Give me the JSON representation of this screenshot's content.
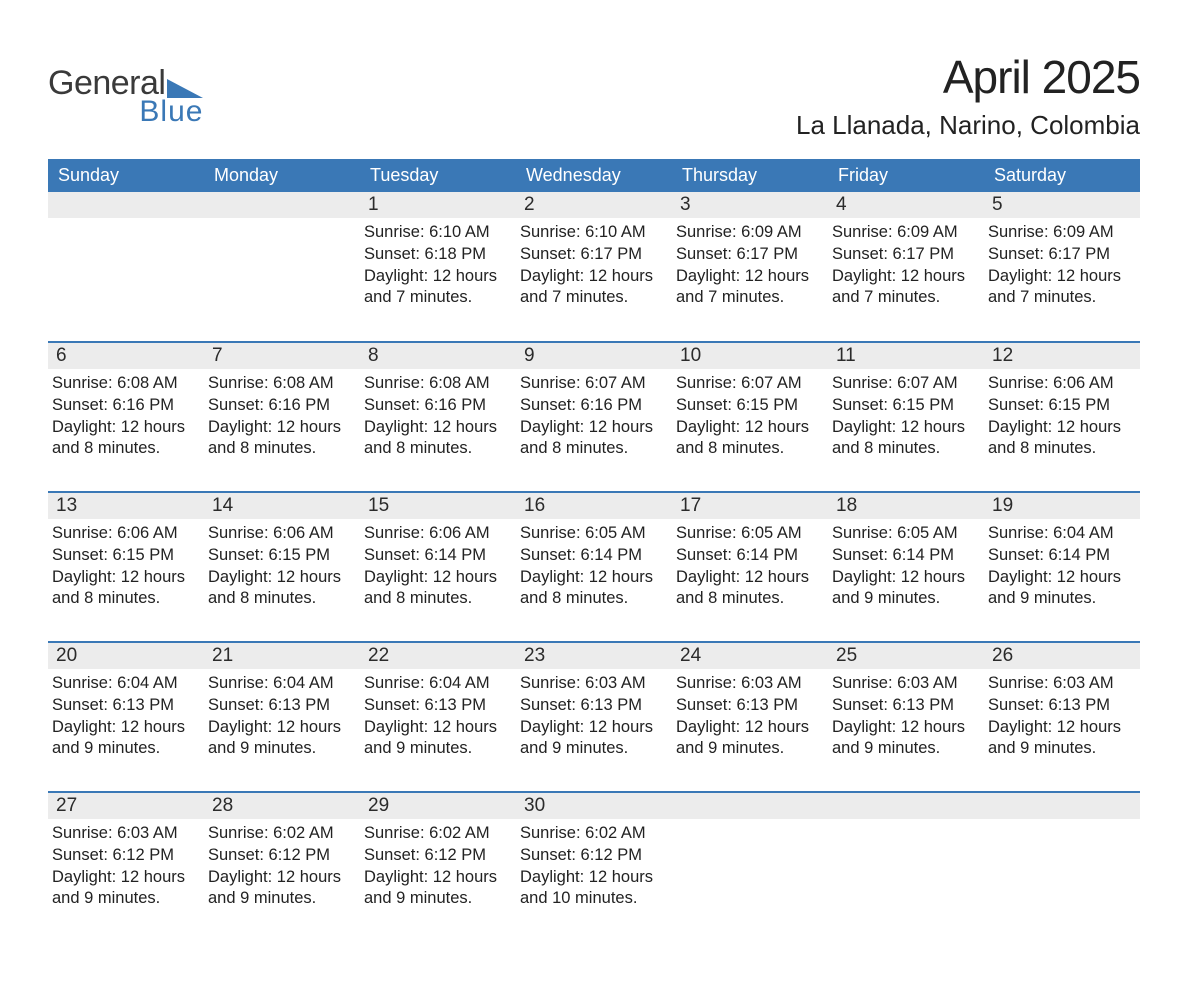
{
  "logo": {
    "text_top": "General",
    "text_bottom": "Blue",
    "color_dark": "#3a3a3a",
    "color_blue": "#3a78b6"
  },
  "title": "April 2025",
  "location": "La Llanada, Narino, Colombia",
  "colors": {
    "header_bg": "#3a78b6",
    "header_text": "#ffffff",
    "daynum_bg": "#ececec",
    "row_divider": "#3a78b6",
    "text": "#222222",
    "page_bg": "#ffffff"
  },
  "weekdays": [
    "Sunday",
    "Monday",
    "Tuesday",
    "Wednesday",
    "Thursday",
    "Friday",
    "Saturday"
  ],
  "weeks": [
    [
      {
        "day": "",
        "sunrise": "",
        "sunset": "",
        "daylight": ""
      },
      {
        "day": "",
        "sunrise": "",
        "sunset": "",
        "daylight": ""
      },
      {
        "day": "1",
        "sunrise": "Sunrise: 6:10 AM",
        "sunset": "Sunset: 6:18 PM",
        "daylight": "Daylight: 12 hours and 7 minutes."
      },
      {
        "day": "2",
        "sunrise": "Sunrise: 6:10 AM",
        "sunset": "Sunset: 6:17 PM",
        "daylight": "Daylight: 12 hours and 7 minutes."
      },
      {
        "day": "3",
        "sunrise": "Sunrise: 6:09 AM",
        "sunset": "Sunset: 6:17 PM",
        "daylight": "Daylight: 12 hours and 7 minutes."
      },
      {
        "day": "4",
        "sunrise": "Sunrise: 6:09 AM",
        "sunset": "Sunset: 6:17 PM",
        "daylight": "Daylight: 12 hours and 7 minutes."
      },
      {
        "day": "5",
        "sunrise": "Sunrise: 6:09 AM",
        "sunset": "Sunset: 6:17 PM",
        "daylight": "Daylight: 12 hours and 7 minutes."
      }
    ],
    [
      {
        "day": "6",
        "sunrise": "Sunrise: 6:08 AM",
        "sunset": "Sunset: 6:16 PM",
        "daylight": "Daylight: 12 hours and 8 minutes."
      },
      {
        "day": "7",
        "sunrise": "Sunrise: 6:08 AM",
        "sunset": "Sunset: 6:16 PM",
        "daylight": "Daylight: 12 hours and 8 minutes."
      },
      {
        "day": "8",
        "sunrise": "Sunrise: 6:08 AM",
        "sunset": "Sunset: 6:16 PM",
        "daylight": "Daylight: 12 hours and 8 minutes."
      },
      {
        "day": "9",
        "sunrise": "Sunrise: 6:07 AM",
        "sunset": "Sunset: 6:16 PM",
        "daylight": "Daylight: 12 hours and 8 minutes."
      },
      {
        "day": "10",
        "sunrise": "Sunrise: 6:07 AM",
        "sunset": "Sunset: 6:15 PM",
        "daylight": "Daylight: 12 hours and 8 minutes."
      },
      {
        "day": "11",
        "sunrise": "Sunrise: 6:07 AM",
        "sunset": "Sunset: 6:15 PM",
        "daylight": "Daylight: 12 hours and 8 minutes."
      },
      {
        "day": "12",
        "sunrise": "Sunrise: 6:06 AM",
        "sunset": "Sunset: 6:15 PM",
        "daylight": "Daylight: 12 hours and 8 minutes."
      }
    ],
    [
      {
        "day": "13",
        "sunrise": "Sunrise: 6:06 AM",
        "sunset": "Sunset: 6:15 PM",
        "daylight": "Daylight: 12 hours and 8 minutes."
      },
      {
        "day": "14",
        "sunrise": "Sunrise: 6:06 AM",
        "sunset": "Sunset: 6:15 PM",
        "daylight": "Daylight: 12 hours and 8 minutes."
      },
      {
        "day": "15",
        "sunrise": "Sunrise: 6:06 AM",
        "sunset": "Sunset: 6:14 PM",
        "daylight": "Daylight: 12 hours and 8 minutes."
      },
      {
        "day": "16",
        "sunrise": "Sunrise: 6:05 AM",
        "sunset": "Sunset: 6:14 PM",
        "daylight": "Daylight: 12 hours and 8 minutes."
      },
      {
        "day": "17",
        "sunrise": "Sunrise: 6:05 AM",
        "sunset": "Sunset: 6:14 PM",
        "daylight": "Daylight: 12 hours and 8 minutes."
      },
      {
        "day": "18",
        "sunrise": "Sunrise: 6:05 AM",
        "sunset": "Sunset: 6:14 PM",
        "daylight": "Daylight: 12 hours and 9 minutes."
      },
      {
        "day": "19",
        "sunrise": "Sunrise: 6:04 AM",
        "sunset": "Sunset: 6:14 PM",
        "daylight": "Daylight: 12 hours and 9 minutes."
      }
    ],
    [
      {
        "day": "20",
        "sunrise": "Sunrise: 6:04 AM",
        "sunset": "Sunset: 6:13 PM",
        "daylight": "Daylight: 12 hours and 9 minutes."
      },
      {
        "day": "21",
        "sunrise": "Sunrise: 6:04 AM",
        "sunset": "Sunset: 6:13 PM",
        "daylight": "Daylight: 12 hours and 9 minutes."
      },
      {
        "day": "22",
        "sunrise": "Sunrise: 6:04 AM",
        "sunset": "Sunset: 6:13 PM",
        "daylight": "Daylight: 12 hours and 9 minutes."
      },
      {
        "day": "23",
        "sunrise": "Sunrise: 6:03 AM",
        "sunset": "Sunset: 6:13 PM",
        "daylight": "Daylight: 12 hours and 9 minutes."
      },
      {
        "day": "24",
        "sunrise": "Sunrise: 6:03 AM",
        "sunset": "Sunset: 6:13 PM",
        "daylight": "Daylight: 12 hours and 9 minutes."
      },
      {
        "day": "25",
        "sunrise": "Sunrise: 6:03 AM",
        "sunset": "Sunset: 6:13 PM",
        "daylight": "Daylight: 12 hours and 9 minutes."
      },
      {
        "day": "26",
        "sunrise": "Sunrise: 6:03 AM",
        "sunset": "Sunset: 6:13 PM",
        "daylight": "Daylight: 12 hours and 9 minutes."
      }
    ],
    [
      {
        "day": "27",
        "sunrise": "Sunrise: 6:03 AM",
        "sunset": "Sunset: 6:12 PM",
        "daylight": "Daylight: 12 hours and 9 minutes."
      },
      {
        "day": "28",
        "sunrise": "Sunrise: 6:02 AM",
        "sunset": "Sunset: 6:12 PM",
        "daylight": "Daylight: 12 hours and 9 minutes."
      },
      {
        "day": "29",
        "sunrise": "Sunrise: 6:02 AM",
        "sunset": "Sunset: 6:12 PM",
        "daylight": "Daylight: 12 hours and 9 minutes."
      },
      {
        "day": "30",
        "sunrise": "Sunrise: 6:02 AM",
        "sunset": "Sunset: 6:12 PM",
        "daylight": "Daylight: 12 hours and 10 minutes."
      },
      {
        "day": "",
        "sunrise": "",
        "sunset": "",
        "daylight": ""
      },
      {
        "day": "",
        "sunrise": "",
        "sunset": "",
        "daylight": ""
      },
      {
        "day": "",
        "sunrise": "",
        "sunset": "",
        "daylight": ""
      }
    ]
  ]
}
